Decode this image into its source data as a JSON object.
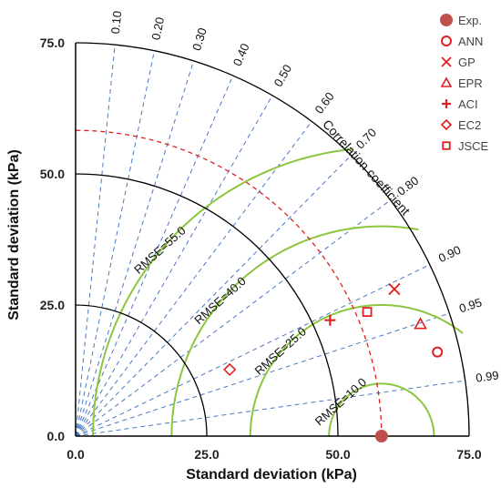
{
  "chart_data": {
    "type": "scatter",
    "subtype": "taylor-diagram",
    "xlabel": "Standard deviation (kPa)",
    "ylabel": "Standard deviation (kPa)",
    "corr_title": "Correlation coefficient",
    "xlim": [
      0,
      75
    ],
    "ylim": [
      0,
      75
    ],
    "ticks": [
      {
        "value": 0,
        "label": "0.0"
      },
      {
        "value": 25,
        "label": "25.0"
      },
      {
        "value": 50,
        "label": "50.0"
      },
      {
        "value": 75,
        "label": "75.0"
      }
    ],
    "correlation_lines": [
      {
        "value": 0.1,
        "label": "0.10"
      },
      {
        "value": 0.2,
        "label": "0.20"
      },
      {
        "value": 0.3,
        "label": "0.30"
      },
      {
        "value": 0.4,
        "label": "0.40"
      },
      {
        "value": 0.5,
        "label": "0.50"
      },
      {
        "value": 0.6,
        "label": "0.60"
      },
      {
        "value": 0.7,
        "label": "0.70"
      },
      {
        "value": 0.8,
        "label": "0.80"
      },
      {
        "value": 0.9,
        "label": "0.90"
      },
      {
        "value": 0.95,
        "label": "0.95"
      },
      {
        "value": 0.99,
        "label": "0.99"
      }
    ],
    "std_arcs": [
      25,
      50,
      75
    ],
    "reference_std": 58.3,
    "rmse_arcs": [
      {
        "value": 10,
        "label": "RMSE=10.0"
      },
      {
        "value": 25,
        "label": "RMSE=25.0"
      },
      {
        "value": 40,
        "label": "RMSE=40.0"
      },
      {
        "value": 55,
        "label": "RMSE=55.0"
      }
    ],
    "colors": {
      "grid_line": "#4a78c0",
      "std_arc": "#000000",
      "rmse_arc": "#8cc63f",
      "ref_arc": "#e02020",
      "marker": "#e02020",
      "exp_marker": "#c0504d"
    },
    "series": [
      {
        "name": "Exp.",
        "marker": "filled-circle",
        "std": 58.3,
        "corr": 1.0
      },
      {
        "name": "ANN",
        "marker": "circle",
        "std": 70.8,
        "corr": 0.974
      },
      {
        "name": "GP",
        "marker": "x",
        "std": 66.9,
        "corr": 0.908
      },
      {
        "name": "EPR",
        "marker": "triangle",
        "std": 69.1,
        "corr": 0.951
      },
      {
        "name": "ACI",
        "marker": "plus",
        "std": 53.3,
        "corr": 0.91
      },
      {
        "name": "EC2",
        "marker": "diamond",
        "std": 32.0,
        "corr": 0.918
      },
      {
        "name": "JSCE",
        "marker": "square",
        "std": 60.4,
        "corr": 0.92
      }
    ]
  }
}
